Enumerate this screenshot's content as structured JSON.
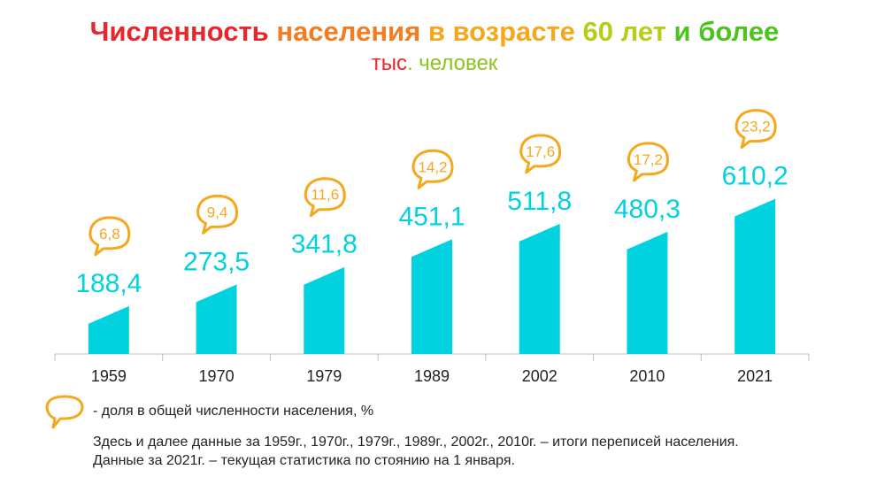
{
  "chart_data": {
    "type": "bar",
    "title_parts": [
      "Численность",
      " населения",
      " в возрасте",
      " 60 лет",
      " и более"
    ],
    "subtitle_parts": [
      "тыс",
      ". человек"
    ],
    "categories": [
      "1959",
      "1970",
      "1979",
      "1989",
      "2002",
      "2010",
      "2021"
    ],
    "series": [
      {
        "values": [
          188.4,
          273.5,
          341.8,
          451.1,
          511.8,
          480.3,
          610.2
        ]
      }
    ],
    "value_labels": [
      "188,4",
      "273,5",
      "341,8",
      "451,1",
      "511,8",
      "480,3",
      "610,2"
    ],
    "share_percent": [
      6.8,
      9.4,
      11.6,
      14.2,
      17.6,
      17.2,
      23.2
    ],
    "share_labels": [
      "6,8",
      "9,4",
      "11,6",
      "14,2",
      "17,6",
      "17,2",
      "23,2"
    ],
    "ylim": [
      0,
      650
    ],
    "grid": false
  },
  "colors": {
    "bar": "#00d2e0",
    "bubble": "#f5a81e",
    "title_gradient": [
      "#e8262c",
      "#f47c20",
      "#f5a81e",
      "#b8cc1a",
      "#4cc31f"
    ],
    "subtitle": [
      "#e8262c",
      "#8dc21f"
    ]
  },
  "legend": {
    "icon": "speech-bubble-icon",
    "text": "- доля в общей численности населения, %"
  },
  "notes": [
    "Здесь и далее данные за 1959г., 1970г., 1979г., 1989г., 2002г., 2010г. – итоги переписей населения.",
    "Данные за 2021г. – текущая  статистика по стоянию на 1 января."
  ]
}
